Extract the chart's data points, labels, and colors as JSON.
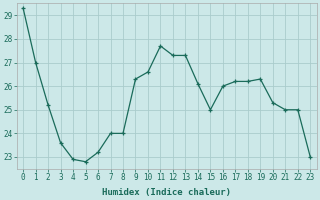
{
  "x": [
    0,
    1,
    2,
    3,
    4,
    5,
    6,
    7,
    8,
    9,
    10,
    11,
    12,
    13,
    14,
    15,
    16,
    17,
    18,
    19,
    20,
    21,
    22,
    23
  ],
  "y": [
    29.3,
    27.0,
    25.2,
    23.6,
    22.9,
    22.8,
    23.2,
    24.0,
    24.0,
    26.3,
    26.6,
    27.7,
    27.3,
    27.3,
    26.1,
    25.0,
    26.0,
    26.2,
    26.2,
    26.3,
    25.3,
    25.0,
    25.0,
    23.0
  ],
  "line_color": "#1a6b5a",
  "marker": "+",
  "bg_color": "#cce8e8",
  "grid_color": "#aacccc",
  "xlabel": "Humidex (Indice chaleur)",
  "ylim": [
    22.5,
    29.5
  ],
  "xlim": [
    -0.5,
    23.5
  ],
  "yticks": [
    23,
    24,
    25,
    26,
    27,
    28,
    29
  ],
  "xticks": [
    0,
    1,
    2,
    3,
    4,
    5,
    6,
    7,
    8,
    9,
    10,
    11,
    12,
    13,
    14,
    15,
    16,
    17,
    18,
    19,
    20,
    21,
    22,
    23
  ],
  "tick_fontsize": 5.5,
  "xlabel_fontsize": 6.5
}
